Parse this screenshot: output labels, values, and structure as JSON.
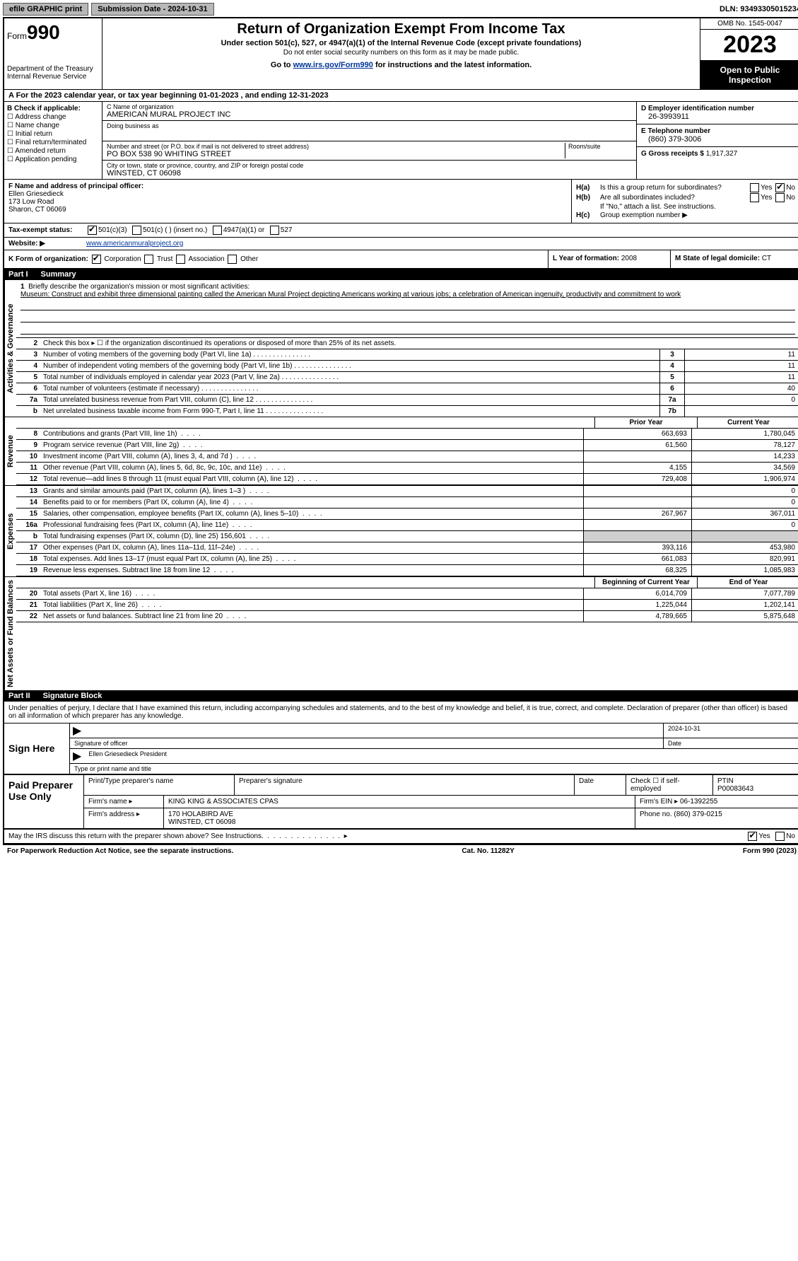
{
  "topbar": {
    "efile_label": "efile GRAPHIC print",
    "submission_label": "Submission Date - 2024-10-31",
    "dln_label": "DLN: 93493305015234"
  },
  "header": {
    "form_word": "Form",
    "form_number": "990",
    "dept": "Department of the Treasury\nInternal Revenue Service",
    "title": "Return of Organization Exempt From Income Tax",
    "subtitle": "Under section 501(c), 527, or 4947(a)(1) of the Internal Revenue Code (except private foundations)",
    "note": "Do not enter social security numbers on this form as it may be made public.",
    "goto_pre": "Go to ",
    "goto_link": "www.irs.gov/Form990",
    "goto_post": " for instructions and the latest information.",
    "omb": "OMB No. 1545-0047",
    "year": "2023",
    "inspect": "Open to Public Inspection"
  },
  "row_a": "A  For the 2023 calendar year, or tax year beginning 01-01-2023    , and ending 12-31-2023",
  "col_b": {
    "head": "B Check if applicable:",
    "items": [
      "Address change",
      "Name change",
      "Initial return",
      "Final return/terminated",
      "Amended return",
      "Application pending"
    ]
  },
  "col_c": {
    "name_lbl": "C Name of organization",
    "name_val": "AMERICAN MURAL PROJECT INC",
    "dba_lbl": "Doing business as",
    "dba_val": "",
    "street_lbl": "Number and street (or P.O. box if mail is not delivered to street address)",
    "street_val": "PO BOX 538 90 WHITING STREET",
    "room_lbl": "Room/suite",
    "city_lbl": "City or town, state or province, country, and ZIP or foreign postal code",
    "city_val": "WINSTED, CT  06098"
  },
  "col_de": {
    "d_lbl": "D Employer identification number",
    "d_val": "26-3993911",
    "e_lbl": "E Telephone number",
    "e_val": "(860) 379-3006",
    "g_lbl": "G Gross receipts $ ",
    "g_val": "1,917,327"
  },
  "col_f": {
    "lbl": "F Name and address of principal officer:",
    "name": "Ellen Griesedieck",
    "addr1": "173 Low Road",
    "addr2": "Sharon, CT  06069"
  },
  "col_h": {
    "ha": "Is this a group return for subordinates?",
    "hb": "Are all subordinates included?",
    "hb_note": "If \"No,\" attach a list. See instructions.",
    "hc": "Group exemption number  ▶"
  },
  "row_i": {
    "lead": "Tax-exempt status:",
    "o1": "501(c)(3)",
    "o2": "501(c) (   ) (insert no.)",
    "o3": "4947(a)(1) or",
    "o4": "527"
  },
  "row_j": {
    "lead": "Website:  ▶",
    "val": "www.americanmuralproject.org"
  },
  "row_klm": {
    "k_lbl": "K Form of organization:",
    "k_opts": [
      "Corporation",
      "Trust",
      "Association",
      "Other"
    ],
    "l_lbl": "L Year of formation: ",
    "l_val": "2008",
    "m_lbl": "M State of legal domicile: ",
    "m_val": "CT"
  },
  "part1": {
    "num": "Part I",
    "title": "Summary"
  },
  "vlabels": {
    "ag": "Activities & Governance",
    "rev": "Revenue",
    "exp": "Expenses",
    "na": "Net Assets or Fund Balances"
  },
  "mission": {
    "lead_num": "1",
    "lead": "Briefly describe the organization's mission or most significant activities:",
    "text": "Museum: Construct and exhibit three dimensional painting called the American Mural Project depicting Americans working at various jobs; a celebration of American ingenuity, productivity and commitment to work"
  },
  "line2": "Check this box ▸ ☐ if the organization discontinued its operations or disposed of more than 25% of its net assets.",
  "slines": [
    {
      "n": "3",
      "d": "Number of voting members of the governing body (Part VI, line 1a)",
      "rn": "3",
      "v": "11"
    },
    {
      "n": "4",
      "d": "Number of independent voting members of the governing body (Part VI, line 1b)",
      "rn": "4",
      "v": "11"
    },
    {
      "n": "5",
      "d": "Total number of individuals employed in calendar year 2023 (Part V, line 2a)",
      "rn": "5",
      "v": "11"
    },
    {
      "n": "6",
      "d": "Total number of volunteers (estimate if necessary)",
      "rn": "6",
      "v": "40"
    },
    {
      "n": "7a",
      "d": "Total unrelated business revenue from Part VIII, column (C), line 12",
      "rn": "7a",
      "v": "0"
    },
    {
      "n": "b",
      "d": "Net unrelated business taxable income from Form 990-T, Part I, line 11",
      "rn": "7b",
      "v": ""
    }
  ],
  "two_hdr_rev": {
    "c1": "Prior Year",
    "c2": "Current Year"
  },
  "rev_lines": [
    {
      "n": "8",
      "d": "Contributions and grants (Part VIII, line 1h)",
      "c1": "663,693",
      "c2": "1,780,045"
    },
    {
      "n": "9",
      "d": "Program service revenue (Part VIII, line 2g)",
      "c1": "61,560",
      "c2": "78,127"
    },
    {
      "n": "10",
      "d": "Investment income (Part VIII, column (A), lines 3, 4, and 7d )",
      "c1": "",
      "c2": "14,233"
    },
    {
      "n": "11",
      "d": "Other revenue (Part VIII, column (A), lines 5, 6d, 8c, 9c, 10c, and 11e)",
      "c1": "4,155",
      "c2": "34,569"
    },
    {
      "n": "12",
      "d": "Total revenue—add lines 8 through 11 (must equal Part VIII, column (A), line 12)",
      "c1": "729,408",
      "c2": "1,906,974"
    }
  ],
  "exp_lines": [
    {
      "n": "13",
      "d": "Grants and similar amounts paid (Part IX, column (A), lines 1–3 )",
      "c1": "",
      "c2": "0"
    },
    {
      "n": "14",
      "d": "Benefits paid to or for members (Part IX, column (A), line 4)",
      "c1": "",
      "c2": "0"
    },
    {
      "n": "15",
      "d": "Salaries, other compensation, employee benefits (Part IX, column (A), lines 5–10)",
      "c1": "267,967",
      "c2": "367,011"
    },
    {
      "n": "16a",
      "d": "Professional fundraising fees (Part IX, column (A), line 11e)",
      "c1": "",
      "c2": "0"
    },
    {
      "n": "b",
      "d": "Total fundraising expenses (Part IX, column (D), line 25) 156,601",
      "c1": "blank",
      "c2": "blank"
    },
    {
      "n": "17",
      "d": "Other expenses (Part IX, column (A), lines 11a–11d, 11f–24e)",
      "c1": "393,116",
      "c2": "453,980"
    },
    {
      "n": "18",
      "d": "Total expenses. Add lines 13–17 (must equal Part IX, column (A), line 25)",
      "c1": "661,083",
      "c2": "820,991"
    },
    {
      "n": "19",
      "d": "Revenue less expenses. Subtract line 18 from line 12",
      "c1": "68,325",
      "c2": "1,085,983"
    }
  ],
  "two_hdr_na": {
    "c1": "Beginning of Current Year",
    "c2": "End of Year"
  },
  "na_lines": [
    {
      "n": "20",
      "d": "Total assets (Part X, line 16)",
      "c1": "6,014,709",
      "c2": "7,077,789"
    },
    {
      "n": "21",
      "d": "Total liabilities (Part X, line 26)",
      "c1": "1,225,044",
      "c2": "1,202,141"
    },
    {
      "n": "22",
      "d": "Net assets or fund balances. Subtract line 21 from line 20",
      "c1": "4,789,665",
      "c2": "5,875,648"
    }
  ],
  "part2": {
    "num": "Part II",
    "title": "Signature Block"
  },
  "sig_intro": "Under penalties of perjury, I declare that I have examined this return, including accompanying schedules and statements, and to the best of my knowledge and belief, it is true, correct, and complete. Declaration of preparer (other than officer) is based on all information of which preparer has any knowledge.",
  "sign_here": "Sign Here",
  "sig": {
    "date": "2024-10-31",
    "sig_lbl": "Signature of officer",
    "name": "Ellen Griesedieck  President",
    "type_lbl": "Type or print name and title",
    "date_lbl": "Date"
  },
  "paid_label": "Paid Preparer Use Only",
  "paid": {
    "r1": {
      "c1": "Print/Type preparer's name",
      "c2": "Preparer's signature",
      "c3": "Date",
      "c4_pre": "Check ☐ if self-employed",
      "c5_lbl": "PTIN",
      "c5_val": "P00083643"
    },
    "r2": {
      "lbl": "Firm's name    ▸",
      "val": "KING KING & ASSOCIATES CPAS",
      "ein_lbl": "Firm's EIN ▸",
      "ein_val": "06-1392255"
    },
    "r3": {
      "lbl": "Firm's address ▸",
      "val1": "170 HOLABIRD AVE",
      "val2": "WINSTED, CT  06098",
      "ph_lbl": "Phone no.",
      "ph_val": "(860) 379-0215"
    }
  },
  "footer_q": "May the IRS discuss this return with the preparer shown above? See Instructions.",
  "footer_final": {
    "left": "For Paperwork Reduction Act Notice, see the separate instructions.",
    "mid": "Cat. No. 11282Y",
    "right": "Form 990 (2023)"
  }
}
